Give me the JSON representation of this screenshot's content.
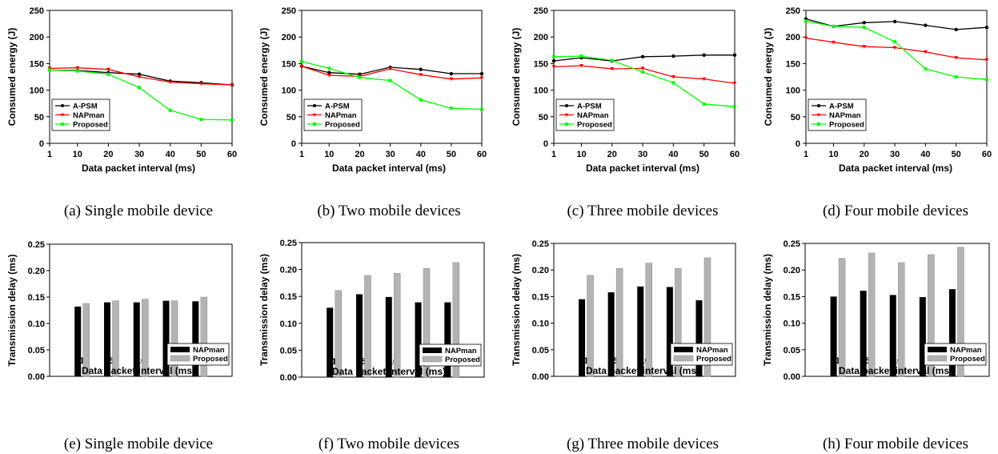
{
  "chart_data": [
    {
      "type": "line",
      "caption": "(a)  Single  mobile  device",
      "xlabel": "Data packet interval (ms)",
      "ylabel": "Consumed energy (J)",
      "x": [
        1,
        10,
        20,
        30,
        40,
        50,
        60
      ],
      "ylim": [
        0,
        250
      ],
      "yticks": [
        "0",
        "50",
        "100",
        "150",
        "200",
        "250"
      ],
      "legend_position": "bottom-left",
      "series": [
        {
          "name": "A-PSM",
          "color": "#000000",
          "values": [
            138,
            137,
            133,
            130,
            117,
            114,
            110
          ]
        },
        {
          "name": "NAPman",
          "color": "#ff0000",
          "values": [
            141,
            142,
            139,
            125,
            115,
            112,
            110
          ]
        },
        {
          "name": "Proposed",
          "color": "#00ff00",
          "values": [
            138,
            136,
            130,
            105,
            62,
            45,
            44
          ]
        }
      ]
    },
    {
      "type": "line",
      "caption": "(b)  Two  mobile  devices",
      "xlabel": "Data packet interval (ms)",
      "ylabel": "Consumed energy (J)",
      "x": [
        1,
        10,
        20,
        30,
        40,
        50,
        60
      ],
      "ylim": [
        0,
        250
      ],
      "yticks": [
        "0",
        "50",
        "100",
        "150",
        "200",
        "250"
      ],
      "legend_position": "bottom-left",
      "series": [
        {
          "name": "A-PSM",
          "color": "#000000",
          "values": [
            145,
            133,
            130,
            143,
            139,
            131,
            131
          ]
        },
        {
          "name": "NAPman",
          "color": "#ff0000",
          "values": [
            145,
            128,
            126,
            140,
            129,
            121,
            123
          ]
        },
        {
          "name": "Proposed",
          "color": "#00ff00",
          "values": [
            154,
            141,
            124,
            118,
            82,
            66,
            64
          ]
        }
      ]
    },
    {
      "type": "line",
      "caption": "(c)  Three  mobile  devices",
      "xlabel": "Data packet interval (ms)",
      "ylabel": "Consumed energy (J)",
      "x": [
        1,
        10,
        20,
        30,
        40,
        50,
        60
      ],
      "ylim": [
        0,
        250
      ],
      "yticks": [
        "0",
        "50",
        "100",
        "150",
        "200",
        "250"
      ],
      "legend_position": "bottom-left",
      "series": [
        {
          "name": "A-PSM",
          "color": "#000000",
          "values": [
            155,
            161,
            155,
            163,
            164,
            166,
            166
          ]
        },
        {
          "name": "NAPman",
          "color": "#ff0000",
          "values": [
            144,
            146,
            140,
            141,
            125,
            121,
            113
          ]
        },
        {
          "name": "Proposed",
          "color": "#00ff00",
          "values": [
            163,
            164,
            156,
            134,
            114,
            74,
            69
          ]
        }
      ]
    },
    {
      "type": "line",
      "caption": "(d)  Four  mobile  devices",
      "xlabel": "Data packet interval (ms)",
      "ylabel": "Consumed energy (J)",
      "x": [
        1,
        10,
        20,
        30,
        40,
        50,
        60
      ],
      "ylim": [
        0,
        250
      ],
      "yticks": [
        "0",
        "50",
        "100",
        "150",
        "200",
        "250"
      ],
      "legend_position": "bottom-left",
      "series": [
        {
          "name": "A-PSM",
          "color": "#000000",
          "values": [
            234,
            220,
            227,
            229,
            222,
            214,
            218
          ]
        },
        {
          "name": "NAPman",
          "color": "#ff0000",
          "values": [
            198,
            190,
            182,
            180,
            172,
            161,
            157
          ]
        },
        {
          "name": "Proposed",
          "color": "#00ff00",
          "values": [
            230,
            220,
            218,
            191,
            140,
            125,
            120
          ]
        }
      ]
    },
    {
      "type": "bar",
      "caption": "(e)  Single  mobile  device",
      "xlabel": "Data packet interval (ms)",
      "ylabel": "Transmission delay (ms)",
      "categories": [
        "1",
        "5",
        "10",
        "15",
        "20"
      ],
      "ylim": [
        0,
        0.25
      ],
      "yticks": [
        "0.00",
        "0.05",
        "0.10",
        "0.15",
        "0.20",
        "0.25"
      ],
      "legend_position": "bottom-right",
      "series": [
        {
          "name": "NAPman",
          "color": "#000000",
          "values": [
            0.132,
            0.14,
            0.14,
            0.143,
            0.142
          ]
        },
        {
          "name": "Proposed",
          "color": "#b3b3b3",
          "values": [
            0.138,
            0.143,
            0.146,
            0.143,
            0.15
          ]
        }
      ]
    },
    {
      "type": "bar",
      "caption": "(f)  Two  mobile  devices",
      "xlabel": "Data packet interval (ms)",
      "ylabel": "Transmission delay (ms)",
      "categories": [
        "1",
        "5",
        "10",
        "15",
        "20"
      ],
      "ylim": [
        0,
        0.25
      ],
      "yticks": [
        "0.00",
        "0.05",
        "0.10",
        "0.15",
        "0.20",
        "0.25"
      ],
      "legend_position": "bottom-right",
      "series": [
        {
          "name": "NAPman",
          "color": "#000000",
          "values": [
            0.129,
            0.154,
            0.149,
            0.139,
            0.139
          ]
        },
        {
          "name": "Proposed",
          "color": "#b3b3b3",
          "values": [
            0.161,
            0.189,
            0.193,
            0.202,
            0.213
          ]
        }
      ]
    },
    {
      "type": "bar",
      "caption": "(g)  Three  mobile  devices",
      "xlabel": "Data packet interval (ms)",
      "ylabel": "Transmission delay (ms)",
      "categories": [
        "1",
        "5",
        "10",
        "15",
        "20"
      ],
      "ylim": [
        0,
        0.25
      ],
      "yticks": [
        "0.00",
        "0.05",
        "0.10",
        "0.15",
        "0.20",
        "0.25"
      ],
      "legend_position": "bottom-right",
      "series": [
        {
          "name": "NAPman",
          "color": "#000000",
          "values": [
            0.145,
            0.158,
            0.169,
            0.168,
            0.143
          ]
        },
        {
          "name": "Proposed",
          "color": "#b3b3b3",
          "values": [
            0.19,
            0.203,
            0.213,
            0.203,
            0.223
          ]
        }
      ]
    },
    {
      "type": "bar",
      "caption": "(h)  Four  mobile  devices",
      "xlabel": "Data packet interval (ms)",
      "ylabel": "Transmission delay (ms)",
      "categories": [
        "1",
        "5",
        "10",
        "15",
        "20"
      ],
      "ylim": [
        0,
        0.25
      ],
      "yticks": [
        "0.00",
        "0.05",
        "0.10",
        "0.15",
        "0.20",
        "0.25"
      ],
      "legend_position": "bottom-right",
      "series": [
        {
          "name": "NAPman",
          "color": "#000000",
          "values": [
            0.15,
            0.161,
            0.153,
            0.149,
            0.164
          ]
        },
        {
          "name": "Proposed",
          "color": "#b3b3b3",
          "values": [
            0.222,
            0.232,
            0.214,
            0.229,
            0.243
          ]
        }
      ]
    }
  ]
}
